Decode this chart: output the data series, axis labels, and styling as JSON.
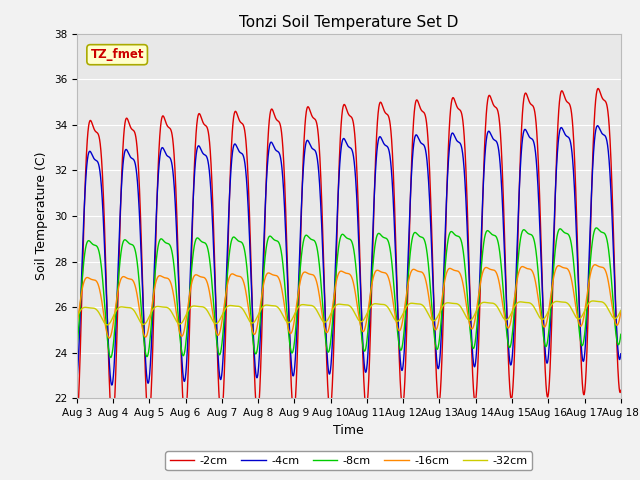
{
  "title": "Tonzi Soil Temperature Set D",
  "xlabel": "Time",
  "ylabel": "Soil Temperature (C)",
  "annotation_text": "TZ_fmet",
  "annotation_color": "#cc0000",
  "annotation_bg": "#ffffcc",
  "annotation_border": "#aaaa00",
  "ylim": [
    22,
    38
  ],
  "x_tick_labels": [
    "Aug 3",
    "Aug 4",
    "Aug 5",
    "Aug 6",
    "Aug 7",
    "Aug 8",
    "Aug 9",
    "Aug 10",
    "Aug 11",
    "Aug 12",
    "Aug 13",
    "Aug 14",
    "Aug 15",
    "Aug 16",
    "Aug 17",
    "Aug 18"
  ],
  "legend_labels": [
    "-2cm",
    "-4cm",
    "-8cm",
    "-16cm",
    "-32cm"
  ],
  "legend_colors": [
    "#dd0000",
    "#0000cc",
    "#00cc00",
    "#ff8800",
    "#cccc00"
  ],
  "background_color": "#e8e8e8",
  "title_fontsize": 11,
  "label_fontsize": 9,
  "tick_fontsize": 7.5,
  "legend_fontsize": 8,
  "n_points": 4000
}
